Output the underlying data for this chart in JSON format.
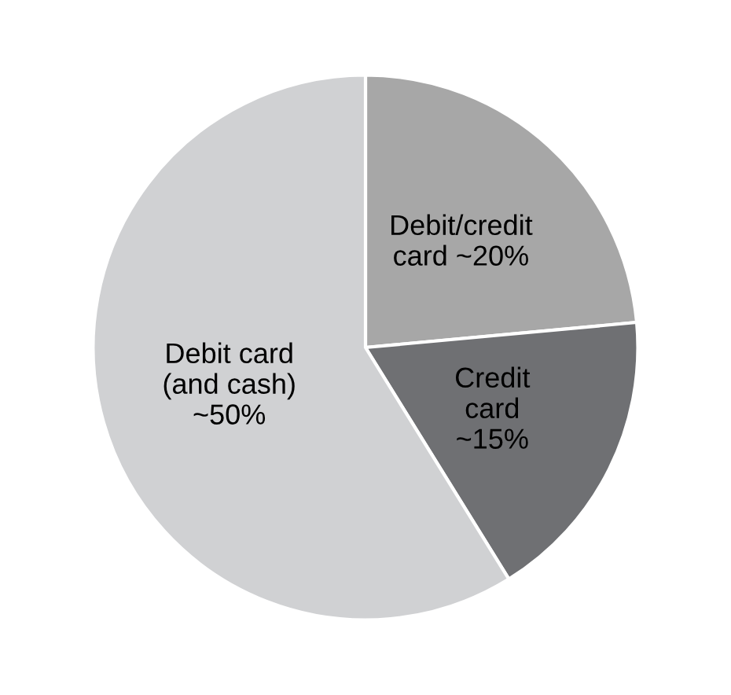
{
  "chart_data": {
    "type": "pie",
    "categories": [
      "Debit/credit\ncard ~20%",
      "Credit\ncard\n~15%",
      "Debit card\n(and cash)\n~50%"
    ],
    "values": [
      20,
      15,
      50
    ],
    "colors": [
      "#a7a7a7",
      "#6f7073",
      "#d0d1d3"
    ],
    "legend": false
  }
}
